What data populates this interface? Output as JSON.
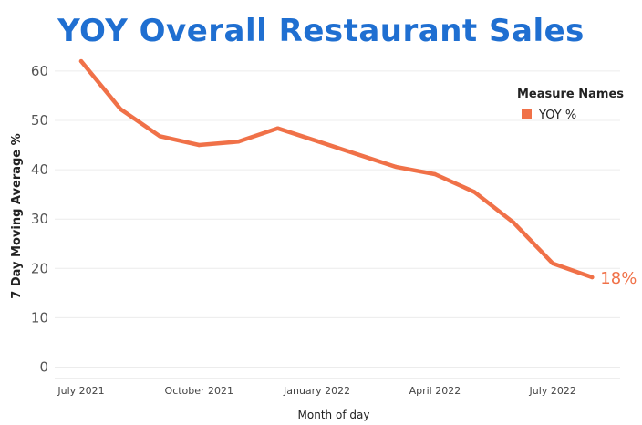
{
  "chart_data": {
    "type": "line",
    "title": "YOY Overall Restaurant Sales",
    "xlabel": "Month of day",
    "ylabel": "7 Day Moving Average %",
    "ylim": [
      0,
      65
    ],
    "yticks": [
      0,
      10,
      20,
      30,
      40,
      50,
      60
    ],
    "x_tick_labels": [
      "July 2021",
      "October 2021",
      "January 2022",
      "April 2022",
      "July 2022"
    ],
    "x_tick_months": [
      0,
      3,
      6,
      9,
      12
    ],
    "grid": true,
    "legend": {
      "title": "Measure Names",
      "placement": "top-right"
    },
    "series": [
      {
        "name": "YOY %",
        "color": "#f07148",
        "x_months": [
          0,
          1,
          2,
          3,
          4,
          5,
          6,
          7,
          8,
          9,
          10,
          11,
          12,
          13
        ],
        "values": [
          62,
          52.3,
          46.8,
          45,
          45.7,
          48.4,
          45.8,
          43.2,
          40.6,
          39.1,
          35.5,
          29.3,
          21,
          18.2
        ]
      }
    ],
    "end_label": "18%"
  }
}
